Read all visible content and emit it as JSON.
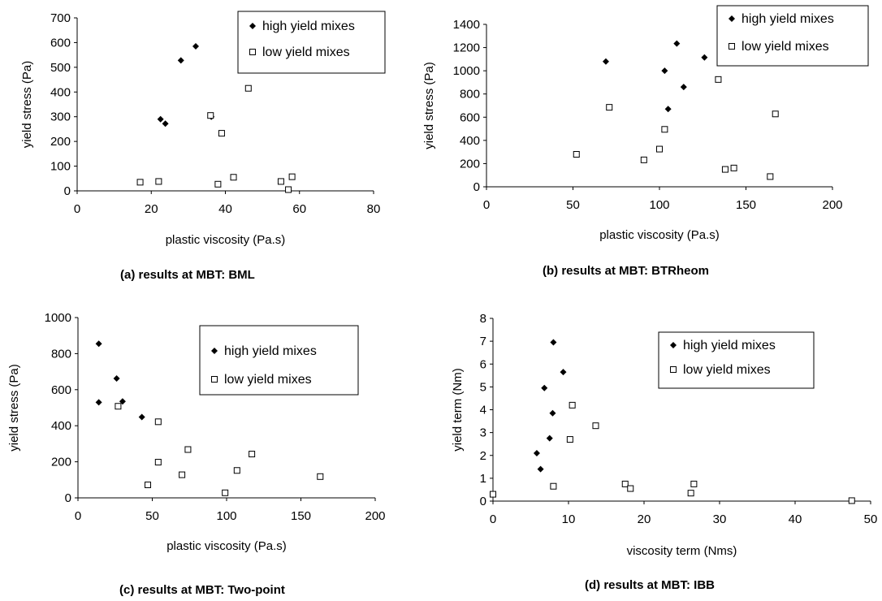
{
  "chart_data": [
    {
      "type": "scatter",
      "caption": "(a)  results at MBT: BML",
      "xlabel": "plastic viscosity (Pa.s)",
      "ylabel": "yield stress (Pa)",
      "xlim": [
        0,
        80
      ],
      "ylim": [
        0,
        700
      ],
      "xticks": [
        "0",
        "20",
        "40",
        "60",
        "80"
      ],
      "yticks": [
        "0",
        "100",
        "200",
        "300",
        "400",
        "500",
        "600",
        "700"
      ],
      "grid": false,
      "legend_position": "top-right",
      "series": [
        {
          "name": "high yield mixes",
          "marker": "filled-diamond",
          "points": [
            [
              22.5,
              290
            ],
            [
              23.8,
              272
            ],
            [
              28,
              528
            ],
            [
              32,
              585
            ],
            [
              36.2,
              300
            ]
          ]
        },
        {
          "name": "low yield mixes",
          "marker": "open-square",
          "points": [
            [
              17,
              35
            ],
            [
              22,
              38
            ],
            [
              36,
              305
            ],
            [
              38,
              27
            ],
            [
              39,
              233
            ],
            [
              42.2,
              55
            ],
            [
              46.2,
              415
            ],
            [
              55,
              38
            ],
            [
              57,
              5
            ],
            [
              58,
              57
            ]
          ]
        }
      ]
    },
    {
      "type": "scatter",
      "caption": "(b)  results at MBT: BTRheom",
      "xlabel": "plastic viscosity (Pa.s)",
      "ylabel": "yield stress (Pa)",
      "xlim": [
        0,
        200
      ],
      "ylim": [
        0,
        1400
      ],
      "xticks": [
        "0",
        "50",
        "100",
        "150",
        "200"
      ],
      "yticks": [
        "0",
        "200",
        "400",
        "600",
        "800",
        "1000",
        "1200",
        "1400"
      ],
      "grid": false,
      "legend_position": "top-right",
      "series": [
        {
          "name": "high yield mixes",
          "marker": "filled-diamond",
          "points": [
            [
              69,
              1080
            ],
            [
              103,
              1000
            ],
            [
              105,
              670
            ],
            [
              110,
              1235
            ],
            [
              114,
              860
            ],
            [
              126,
              1115
            ]
          ]
        },
        {
          "name": "low yield mixes",
          "marker": "open-square",
          "points": [
            [
              52,
              280
            ],
            [
              71,
              685
            ],
            [
              91,
              232
            ],
            [
              100,
              325
            ],
            [
              103,
              495
            ],
            [
              134,
              925
            ],
            [
              138,
              150
            ],
            [
              143,
              162
            ],
            [
              164,
              88
            ],
            [
              167,
              628
            ]
          ]
        }
      ]
    },
    {
      "type": "scatter",
      "caption": "(c)  results at MBT: Two-point",
      "xlabel": "plastic viscosity (Pa.s)",
      "ylabel": "yield stress (Pa)",
      "xlim": [
        0,
        200
      ],
      "ylim": [
        0,
        1000
      ],
      "xticks": [
        "0",
        "50",
        "100",
        "150",
        "200"
      ],
      "yticks": [
        "0",
        "200",
        "400",
        "600",
        "800",
        "1000"
      ],
      "grid": false,
      "legend_position": "top-right",
      "series": [
        {
          "name": "high yield mixes",
          "marker": "filled-diamond",
          "points": [
            [
              14,
              855
            ],
            [
              14,
              530
            ],
            [
              26,
              662
            ],
            [
              30,
              535
            ],
            [
              43,
              448
            ]
          ]
        },
        {
          "name": "low yield mixes",
          "marker": "open-square",
          "points": [
            [
              27,
              508
            ],
            [
              47,
              72
            ],
            [
              54,
              422
            ],
            [
              54,
              198
            ],
            [
              70,
              128
            ],
            [
              74,
              268
            ],
            [
              99,
              28
            ],
            [
              107,
              152
            ],
            [
              117,
              243
            ],
            [
              163,
              118
            ]
          ]
        }
      ]
    },
    {
      "type": "scatter",
      "caption": "(d)  results at MBT: IBB",
      "xlabel": "viscosity term (Nms)",
      "ylabel": "yield term (Nm)",
      "xlim": [
        0,
        50
      ],
      "ylim": [
        0,
        8
      ],
      "xticks": [
        "0",
        "10",
        "20",
        "30",
        "40",
        "50"
      ],
      "yticks": [
        "0",
        "1",
        "2",
        "3",
        "4",
        "5",
        "6",
        "7",
        "8"
      ],
      "grid": false,
      "legend_position": "top-right",
      "series": [
        {
          "name": "high yield mixes",
          "marker": "filled-diamond",
          "points": [
            [
              5.8,
              2.1
            ],
            [
              6.3,
              1.4
            ],
            [
              6.8,
              4.95
            ],
            [
              7.5,
              2.75
            ],
            [
              7.9,
              3.85
            ],
            [
              8,
              6.95
            ],
            [
              9.3,
              5.65
            ]
          ]
        },
        {
          "name": "low yield mixes",
          "marker": "open-square",
          "points": [
            [
              0,
              0.3
            ],
            [
              8,
              0.65
            ],
            [
              10.2,
              2.7
            ],
            [
              10.5,
              4.2
            ],
            [
              13.6,
              3.3
            ],
            [
              17.5,
              0.75
            ],
            [
              18.2,
              0.55
            ],
            [
              26.2,
              0.35
            ],
            [
              26.6,
              0.75
            ],
            [
              47.5,
              0.02
            ]
          ]
        }
      ]
    }
  ]
}
